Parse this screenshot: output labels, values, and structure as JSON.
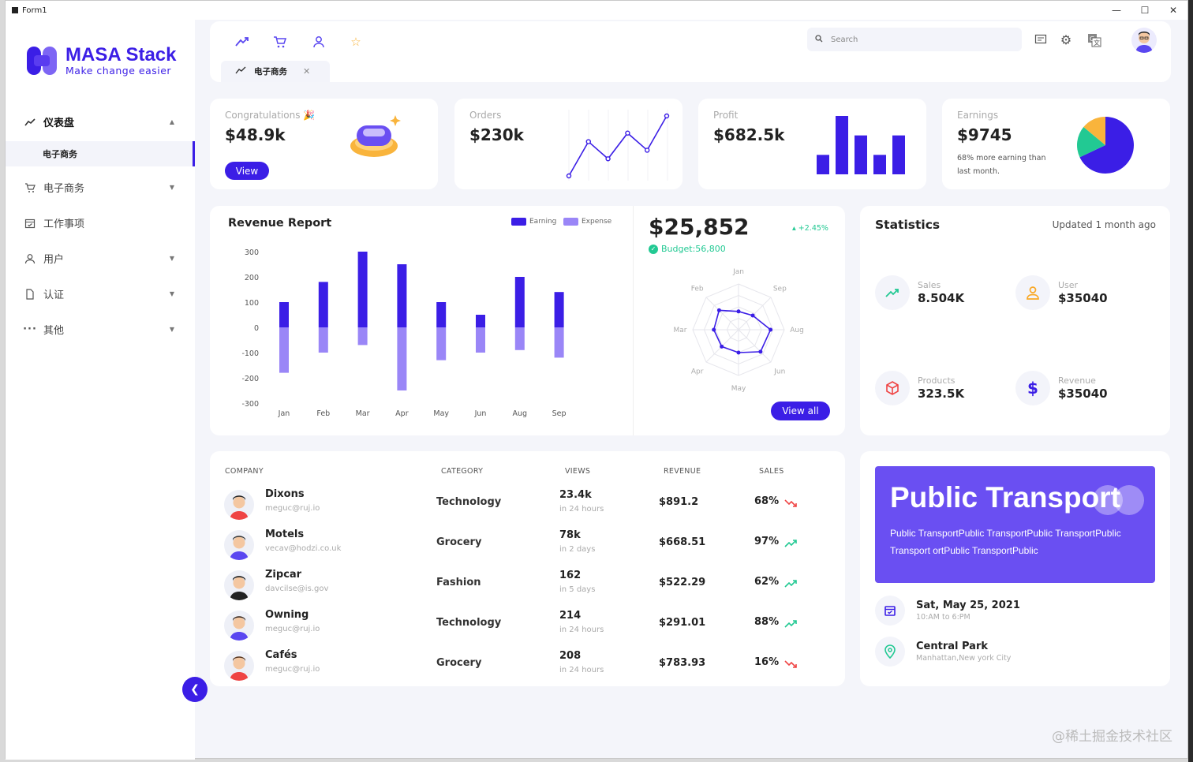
{
  "window": {
    "title": "Form1",
    "controls": [
      "—",
      "☐",
      "✕"
    ]
  },
  "brand": {
    "name": "MASA Stack",
    "tagline": "Make change easier",
    "color": "#3b1ee6"
  },
  "sidebar": {
    "items": [
      {
        "label": "仪表盘",
        "icon": "trend-icon",
        "expanded": true
      },
      {
        "label": "电子商务",
        "icon": "cart-icon"
      },
      {
        "label": "工作事项",
        "icon": "calendar-icon"
      },
      {
        "label": "用户",
        "icon": "user-icon"
      },
      {
        "label": "认证",
        "icon": "file-icon"
      },
      {
        "label": "其他",
        "icon": "more-icon"
      }
    ],
    "subitem": "电子商务"
  },
  "topbar": {
    "icons": [
      "trend-icon",
      "cart-icon",
      "user-icon",
      "star-icon"
    ],
    "tab": {
      "label": "电子商务"
    },
    "search_placeholder": "Search"
  },
  "kpi": {
    "congrats": {
      "label": "Congratulations 🎉",
      "value": "$48.9k",
      "button": "View"
    },
    "orders": {
      "label": "Orders",
      "value": "$230k",
      "line": [
        1,
        5,
        3,
        6,
        4,
        8
      ]
    },
    "profit": {
      "label": "Profit",
      "value": "$682.5k",
      "bars": [
        1,
        3,
        2,
        1,
        2
      ]
    },
    "earnings": {
      "label": "Earnings",
      "value": "$9745",
      "note": "68% more earning than last month.",
      "pie": [
        {
          "value": 68,
          "color": "#3b1ee6"
        },
        {
          "value": 18,
          "color": "#22c993"
        },
        {
          "value": 14,
          "color": "#f9b43c"
        }
      ]
    }
  },
  "revenue": {
    "title": "Revenue Report",
    "legend": [
      {
        "name": "Earning",
        "color": "#3b1ee6"
      },
      {
        "name": "Expense",
        "color": "#9a86f7"
      }
    ],
    "amount": "$25,852",
    "change": "+2.45%",
    "budget": "Budget:56,800",
    "button": "View all"
  },
  "chart_data": [
    {
      "type": "bar",
      "title": "Revenue Report",
      "categories": [
        "Jan",
        "Feb",
        "Mar",
        "Apr",
        "May",
        "Jun",
        "Aug",
        "Sep"
      ],
      "series": [
        {
          "name": "Earning",
          "values": [
            100,
            180,
            300,
            250,
            100,
            50,
            200,
            140
          ]
        },
        {
          "name": "Expense",
          "values": [
            -180,
            -100,
            -70,
            -250,
            -130,
            -100,
            -90,
            -120
          ]
        }
      ],
      "yticks": [
        300,
        200,
        100,
        0,
        -100,
        -200,
        -300
      ],
      "ylim": [
        -300,
        300
      ]
    },
    {
      "type": "radar",
      "axes": [
        "Jan",
        "Sep",
        "Aug",
        "Jun",
        "May",
        "Apr",
        "Mar",
        "Feb"
      ],
      "values": [
        20,
        22,
        35,
        34,
        25,
        26,
        27,
        30
      ],
      "max": 50
    }
  ],
  "statistics": {
    "title": "Statistics",
    "updated": "Updated 1 month ago",
    "items": [
      {
        "label": "Sales",
        "value": "8.504K",
        "icon": "trend-icon",
        "color": "#22c993"
      },
      {
        "label": "User",
        "value": "$35040",
        "icon": "user-icon",
        "color": "#f9a825"
      },
      {
        "label": "Products",
        "value": "323.5K",
        "icon": "box-icon",
        "color": "#ef4444"
      },
      {
        "label": "Revenue",
        "value": "$35040",
        "icon": "dollar-icon",
        "color": "#3b1ee6"
      }
    ]
  },
  "table": {
    "headers": [
      "COMPANY",
      "CATEGORY",
      "VIEWS",
      "REVENUE",
      "SALES"
    ],
    "rows": [
      {
        "name": "Dixons",
        "email": "meguc@ruj.io",
        "category": "Technology",
        "views": "23.4k",
        "views_time": "in 24 hours",
        "revenue": "$891.2",
        "sales": "68%",
        "trend": "down"
      },
      {
        "name": "Motels",
        "email": "vecav@hodzi.co.uk",
        "category": "Grocery",
        "views": "78k",
        "views_time": "in 2 days",
        "revenue": "$668.51",
        "sales": "97%",
        "trend": "up"
      },
      {
        "name": "Zipcar",
        "email": "davcilse@is.gov",
        "category": "Fashion",
        "views": "162",
        "views_time": "in 5 days",
        "revenue": "$522.29",
        "sales": "62%",
        "trend": "up"
      },
      {
        "name": "Owning",
        "email": "meguc@ruj.io",
        "category": "Technology",
        "views": "214",
        "views_time": "in 24 hours",
        "revenue": "$291.01",
        "sales": "88%",
        "trend": "up"
      },
      {
        "name": "Cafés",
        "email": "meguc@ruj.io",
        "category": "Grocery",
        "views": "208",
        "views_time": "in 24 hours",
        "revenue": "$783.93",
        "sales": "16%",
        "trend": "down"
      }
    ]
  },
  "event": {
    "title": "Public Transport",
    "description": "Public TransportPublic TransportPublic TransportPublic Transport ortPublic TransportPublic",
    "date": "Sat, May 25, 2021",
    "time": "10:AM to 6:PM",
    "place": "Central Park",
    "address": "Manhattan,New york City"
  },
  "watermark": "@稀土掘金技术社区"
}
